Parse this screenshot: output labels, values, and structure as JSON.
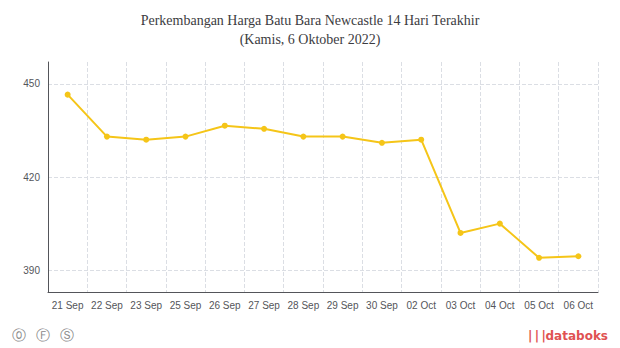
{
  "chart_data": {
    "type": "line",
    "title": "Perkembangan Harga Batu Bara Newcastle 14 Hari Terakhir\n(Kamis, 6 Oktober 2022)",
    "categories": [
      "21 Sep",
      "22 Sep",
      "23 Sep",
      "25 Sep",
      "26 Sep",
      "27 Sep",
      "28 Sep",
      "29 Sep",
      "30 Sep",
      "02 Oct",
      "03 Oct",
      "04 Oct",
      "05 Oct",
      "06 Oct"
    ],
    "values": [
      446.5,
      433.0,
      432.0,
      433.0,
      436.5,
      435.5,
      433.0,
      433.0,
      431.0,
      432.0,
      402.0,
      405.0,
      394.0,
      394.5
    ],
    "color": "#F5C518",
    "marker": "circle",
    "ylim": [
      383,
      457
    ],
    "yticks": [
      390,
      420,
      450
    ],
    "grid": true,
    "annotations": [
      {
        "text": "⓪",
        "color": "#888888"
      },
      {
        "text": "Ⓕ",
        "color": "#888888"
      },
      {
        "text": "Ⓢ",
        "color": "#888888"
      },
      {
        "text": "| | |",
        "color": "#e05252"
      },
      {
        "text": "databoks",
        "color": "#e05252"
      }
    ]
  }
}
